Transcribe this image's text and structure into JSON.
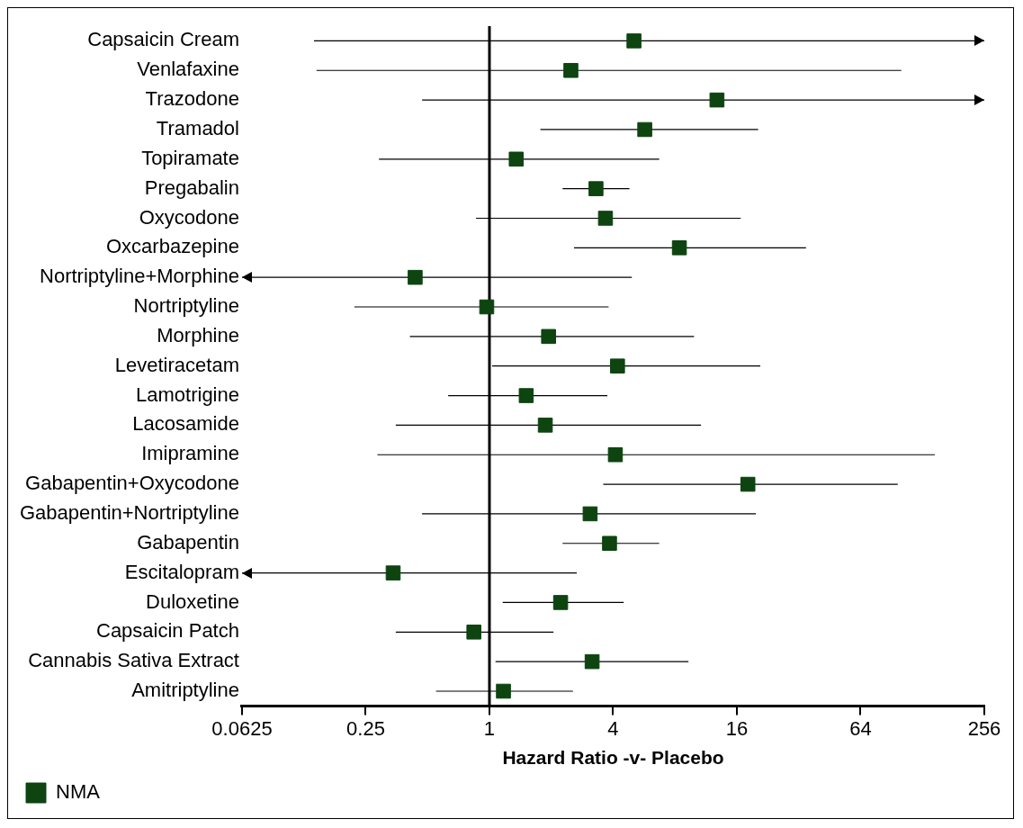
{
  "chart_data": {
    "type": "scatter",
    "orientation": "horizontal",
    "xlabel": "Hazard Ratio -v- Placebo",
    "categories": [
      "Capsaicin Cream",
      "Venlafaxine",
      "Trazodone",
      "Tramadol",
      "Topiramate",
      "Pregabalin",
      "Oxycodone",
      "Oxcarbazepine",
      "Nortriptyline+Morphine",
      "Nortriptyline",
      "Morphine",
      "Levetiracetam",
      "Lamotrigine",
      "Lacosamide",
      "Imipramine",
      "Gabapentin+Oxycodone",
      "Gabapentin+Nortriptyline",
      "Gabapentin",
      "Escitalopram",
      "Duloxetine",
      "Capsaicin Patch",
      "Cannabis Sativa Extract",
      "Amitriptyline"
    ],
    "series": [
      {
        "name": "NMA",
        "color": "#0d4410",
        "values": [
          5.05,
          2.49,
          12.8,
          5.7,
          1.35,
          3.3,
          3.67,
          8.4,
          0.435,
          0.97,
          1.94,
          4.2,
          1.51,
          1.87,
          4.1,
          18.1,
          3.09,
          3.84,
          0.34,
          2.22,
          0.84,
          3.16,
          1.17
        ],
        "errors": [
          [
            0.14,
            256
          ],
          [
            0.144,
            101
          ],
          [
            0.47,
            256
          ],
          [
            1.77,
            20.3
          ],
          [
            0.29,
            6.7
          ],
          [
            2.27,
            4.8
          ],
          [
            0.86,
            16.7
          ],
          [
            2.58,
            34.7
          ],
          [
            0.0625,
            4.93
          ],
          [
            0.22,
            3.8
          ],
          [
            0.41,
            9.9
          ],
          [
            1.03,
            20.8
          ],
          [
            0.63,
            3.75
          ],
          [
            0.35,
            10.7
          ],
          [
            0.285,
            147
          ],
          [
            3.58,
            97
          ],
          [
            0.47,
            19.8
          ],
          [
            2.27,
            6.7
          ],
          [
            0.0625,
            2.66
          ],
          [
            1.16,
            4.5
          ],
          [
            0.35,
            2.05
          ],
          [
            1.07,
            9.3
          ],
          [
            0.55,
            2.55
          ]
        ]
      }
    ],
    "log": "x",
    "xlim": [
      0.0625,
      256
    ],
    "xticks": [
      0.0625,
      0.25,
      1,
      4,
      16,
      64,
      256
    ],
    "ref_lines": [
      {
        "axis": "x",
        "value": 1,
        "color": "#000000"
      }
    ],
    "grid": false,
    "legend": "bottom left",
    "marker": "square"
  }
}
